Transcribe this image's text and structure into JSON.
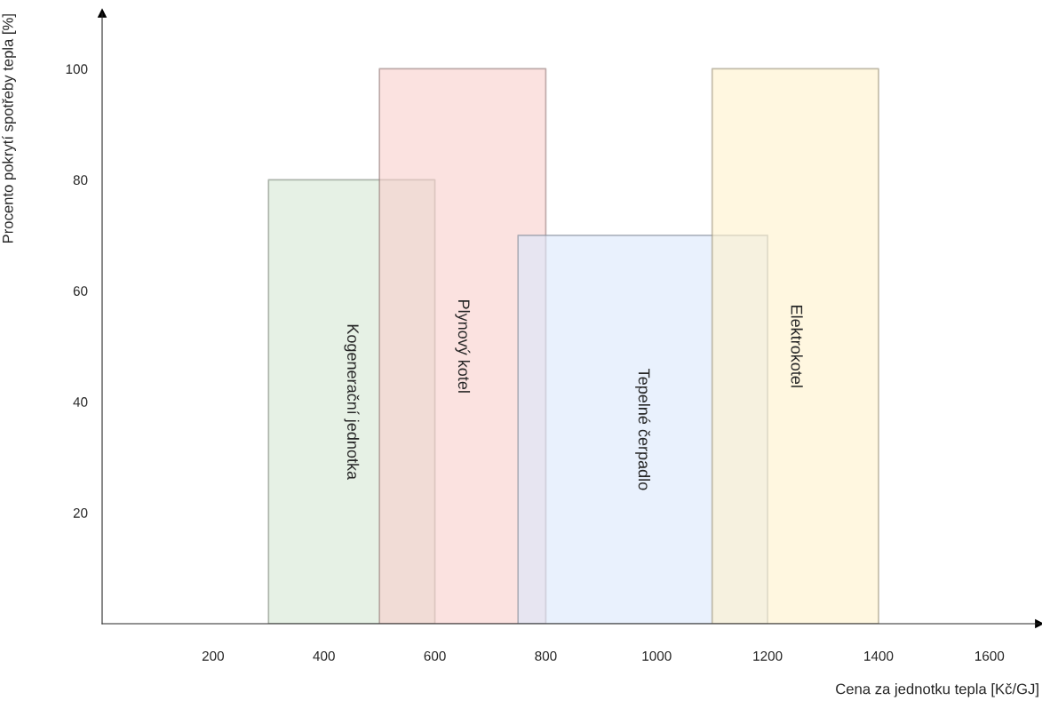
{
  "chart_data": {
    "type": "area",
    "xlabel": "Cena za jednotku tepla [Kč/GJ]",
    "ylabel": "Procento pokrytí spotřeby tepla [%]",
    "xlim": [
      0,
      1690
    ],
    "ylim": [
      0,
      110
    ],
    "xticks": [
      200,
      400,
      600,
      800,
      1000,
      1200,
      1400,
      1600
    ],
    "yticks": [
      20,
      40,
      60,
      80,
      100
    ],
    "grid": false,
    "legend": false,
    "series": [
      {
        "name": "Kogenerační jednotka",
        "color": "#d5e8d4",
        "x": [
          300,
          600
        ],
        "values": [
          80,
          80
        ]
      },
      {
        "name": "Plynový kotel",
        "color": "#f8cecc",
        "x": [
          500,
          800
        ],
        "values": [
          100,
          100
        ]
      },
      {
        "name": "Tepelné čerpadlo",
        "color": "#dae8fc",
        "x": [
          750,
          1200
        ],
        "values": [
          70,
          70
        ]
      },
      {
        "name": "Elektrokotel",
        "color": "#fff2cc",
        "x": [
          1100,
          1400
        ],
        "values": [
          100,
          100
        ]
      }
    ]
  }
}
